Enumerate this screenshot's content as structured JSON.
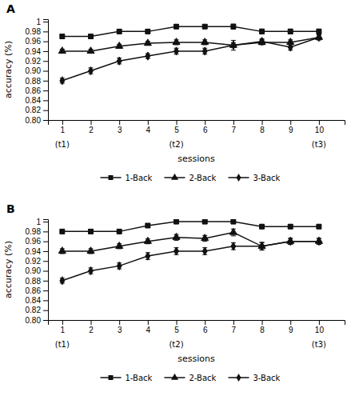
{
  "chart_data": [
    {
      "type": "line",
      "title": "A",
      "xlabel": "sessions",
      "ylabel": "accuracy (%)",
      "x": [
        1,
        2,
        3,
        4,
        5,
        6,
        7,
        8,
        9,
        10
      ],
      "xlim": [
        0.5,
        10.9
      ],
      "xticks": [
        1,
        2,
        3,
        4,
        5,
        6,
        7,
        8,
        9,
        10
      ],
      "ylim": [
        0.8,
        1.005
      ],
      "yticks": [
        {
          "value": 0.8,
          "label": "0.80"
        },
        0.82,
        0.84,
        0.86,
        0.88,
        {
          "value": 0.9,
          "label": "0.90"
        },
        0.92,
        0.94,
        0.96,
        0.98,
        1
      ],
      "annotations": [
        {
          "x": 1,
          "text": "(t1)"
        },
        {
          "x": 5,
          "text": "(t2)"
        },
        {
          "x": 10,
          "text": "(t3)"
        }
      ],
      "grid": false,
      "legend": "bottom",
      "series": [
        {
          "name": "1-Back",
          "color": "#111111",
          "marker": "square",
          "values": [
            0.97,
            0.97,
            0.98,
            0.98,
            0.99,
            0.99,
            0.99,
            0.98,
            0.98,
            0.98
          ],
          "errors": [
            0.004,
            0.004,
            0.004,
            0.004,
            0.004,
            0.004,
            0.005,
            0.005,
            0.005,
            0.005
          ]
        },
        {
          "name": "2-Back",
          "color": "#111111",
          "marker": "triangle",
          "values": [
            0.94,
            0.94,
            0.95,
            0.956,
            0.958,
            0.958,
            0.952,
            0.958,
            0.958,
            0.968
          ],
          "errors": [
            0.004,
            0.004,
            0.004,
            0.004,
            0.005,
            0.005,
            0.005,
            0.005,
            0.005,
            0.005
          ]
        },
        {
          "name": "3-Back",
          "color": "#111111",
          "marker": "diamond",
          "values": [
            0.88,
            0.9,
            0.92,
            0.93,
            0.94,
            0.94,
            0.952,
            0.96,
            0.948,
            0.968
          ],
          "errors": [
            0.005,
            0.006,
            0.006,
            0.005,
            0.006,
            0.006,
            0.01,
            0.005,
            0.006,
            0.005
          ]
        }
      ]
    },
    {
      "type": "line",
      "title": "B",
      "xlabel": "sessions",
      "ylabel": "accuracy (%)",
      "x": [
        1,
        2,
        3,
        4,
        5,
        6,
        7,
        8,
        9,
        10
      ],
      "xlim": [
        0.5,
        10.9
      ],
      "xticks": [
        1,
        2,
        3,
        4,
        5,
        6,
        7,
        8,
        9,
        10
      ],
      "ylim": [
        0.8,
        1.005
      ],
      "yticks": [
        {
          "value": 0.8,
          "label": "0.80"
        },
        0.82,
        0.84,
        0.86,
        0.88,
        {
          "value": 0.9,
          "label": "0.90"
        },
        0.92,
        0.94,
        0.96,
        0.98,
        1
      ],
      "annotations": [
        {
          "x": 1,
          "text": "(t1)"
        },
        {
          "x": 5,
          "text": "(t2)"
        },
        {
          "x": 10,
          "text": "(t3)"
        }
      ],
      "grid": false,
      "legend": "bottom",
      "series": [
        {
          "name": "1-Back",
          "color": "#111111",
          "marker": "square",
          "values": [
            0.98,
            0.98,
            0.98,
            0.992,
            1.0,
            1.0,
            1.0,
            0.99,
            0.99,
            0.99
          ],
          "errors": [
            0.004,
            0.004,
            0.004,
            0.004,
            0.003,
            0.003,
            0.004,
            0.004,
            0.004,
            0.004
          ]
        },
        {
          "name": "2-Back",
          "color": "#111111",
          "marker": "triangle",
          "values": [
            0.94,
            0.94,
            0.95,
            0.96,
            0.968,
            0.966,
            0.978,
            0.95,
            0.96,
            0.96
          ],
          "errors": [
            0.005,
            0.005,
            0.005,
            0.005,
            0.006,
            0.006,
            0.007,
            0.008,
            0.006,
            0.006
          ]
        },
        {
          "name": "3-Back",
          "color": "#111111",
          "marker": "diamond",
          "values": [
            0.88,
            0.9,
            0.91,
            0.93,
            0.94,
            0.94,
            0.95,
            0.95,
            0.96,
            0.96
          ],
          "errors": [
            0.005,
            0.006,
            0.006,
            0.007,
            0.007,
            0.007,
            0.007,
            0.007,
            0.006,
            0.006
          ]
        }
      ]
    }
  ]
}
